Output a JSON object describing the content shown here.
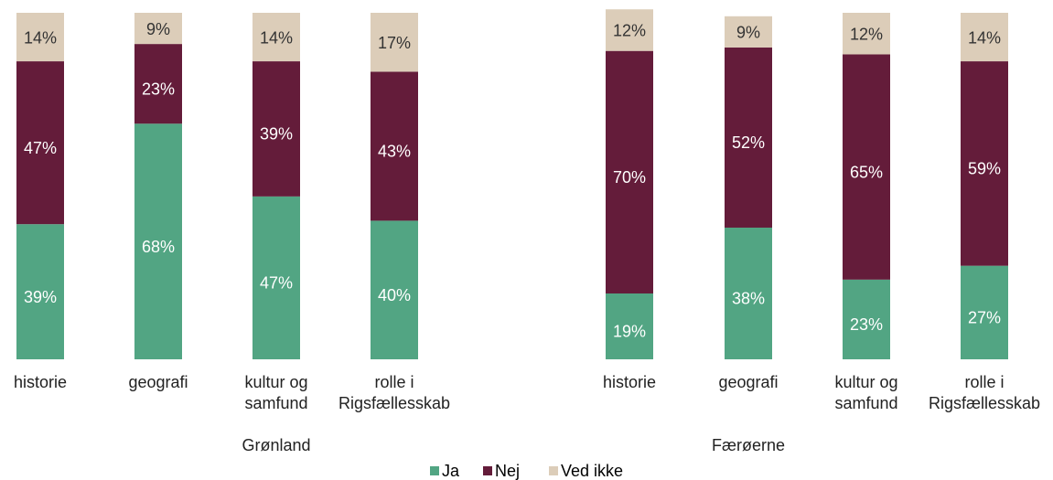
{
  "chart_data": {
    "type": "stacked-bar",
    "ylim": [
      0,
      100
    ],
    "series": [
      {
        "name": "Ja",
        "color": "#52a583"
      },
      {
        "name": "Nej",
        "color": "#641c3a"
      },
      {
        "name": "Ved ikke",
        "color": "#dccdb9"
      }
    ],
    "groups": [
      {
        "name": "Grønland",
        "categories": [
          "historie",
          "geografi",
          "kultur og\nsamfund",
          "rolle i\nRigsfællesskab"
        ],
        "values": [
          [
            39,
            68,
            47,
            40
          ],
          [
            47,
            23,
            39,
            43
          ],
          [
            14,
            9,
            14,
            17
          ]
        ],
        "value_labels": [
          [
            "39%",
            "68%",
            "47%",
            "40%"
          ],
          [
            "47%",
            "23%",
            "39%",
            "43%"
          ],
          [
            "14%",
            "9%",
            "14%",
            "17%"
          ]
        ]
      },
      {
        "name": "Færøerne",
        "categories": [
          "historie",
          "geografi",
          "kultur og\nsamfund",
          "rolle i\nRigsfællesskab"
        ],
        "values": [
          [
            19,
            38,
            23,
            27
          ],
          [
            70,
            52,
            65,
            59
          ],
          [
            12,
            9,
            12,
            14
          ]
        ],
        "value_labels": [
          [
            "19%",
            "38%",
            "23%",
            "27%"
          ],
          [
            "70%",
            "52%",
            "65%",
            "59%"
          ],
          [
            "12%",
            "9%",
            "12%",
            "14%"
          ]
        ]
      }
    ]
  }
}
